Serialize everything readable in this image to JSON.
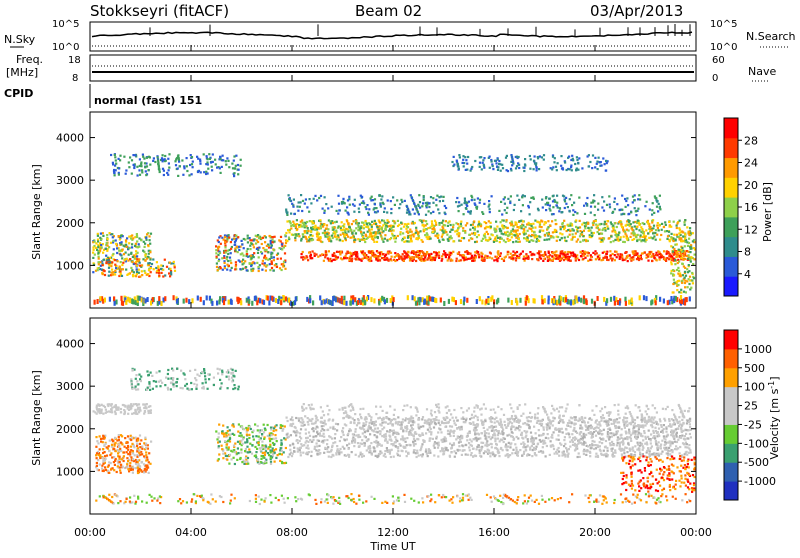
{
  "header": {
    "station": "Stokkseyri (fitACF)",
    "beam": "Beam 02",
    "date": "03/Apr/2013"
  },
  "status_panels": {
    "nsky_label": "N.Sky",
    "nsearch_label": "N.Search",
    "nsky_ticks": [
      "10^5",
      "10^0"
    ],
    "nsearch_ticks": [
      "10^5",
      "10^0"
    ],
    "freq_label_top": "Freq.",
    "freq_label_bottom": "[MHz]",
    "freq_ticks": [
      "18",
      "8"
    ],
    "nave_label": "Nave",
    "nave_ticks": [
      "60",
      "0"
    ],
    "cpid_label": "CPID",
    "cpid_value": "normal (fast) 151"
  },
  "chart_data": [
    {
      "type": "heatmap",
      "name": "power",
      "ylabel": "Slant Range [km]",
      "yticks": [
        1000,
        2000,
        3000,
        4000
      ],
      "ylim": [
        0,
        4600
      ],
      "xlim": [
        0,
        24
      ],
      "colorbar": {
        "label": "Power [dB]",
        "ticks": [
          "4",
          "8",
          "12",
          "16",
          "20",
          "24",
          "28"
        ],
        "colors": [
          "#1a1aff",
          "#2a5ad8",
          "#2f8c8c",
          "#3ea05a",
          "#8ed04a",
          "#ffd100",
          "#ff9a00",
          "#ff3a00",
          "#ff0000"
        ]
      }
    },
    {
      "type": "heatmap",
      "name": "velocity",
      "ylabel": "Slant Range [km]",
      "yticks": [
        1000,
        2000,
        3000,
        4000
      ],
      "ylim": [
        0,
        4600
      ],
      "xlim": [
        0,
        24
      ],
      "colorbar": {
        "label": "Velocity [m s",
        "label_sup": "-1",
        "label_close": "]",
        "ticks": [
          "1000",
          "500",
          "100",
          "25",
          "-25",
          "-100",
          "-500",
          "-1000"
        ],
        "colors": [
          "#2030c0",
          "#2f60b0",
          "#3aa070",
          "#66cc33",
          "#c8c8c8",
          "#c8c8c8",
          "#ffa000",
          "#ff6000",
          "#ff0000"
        ]
      }
    }
  ],
  "xaxis": {
    "ticks": [
      "00:00",
      "04:00",
      "08:00",
      "12:00",
      "16:00",
      "20:00",
      "00:00"
    ],
    "label": "Time UT"
  }
}
